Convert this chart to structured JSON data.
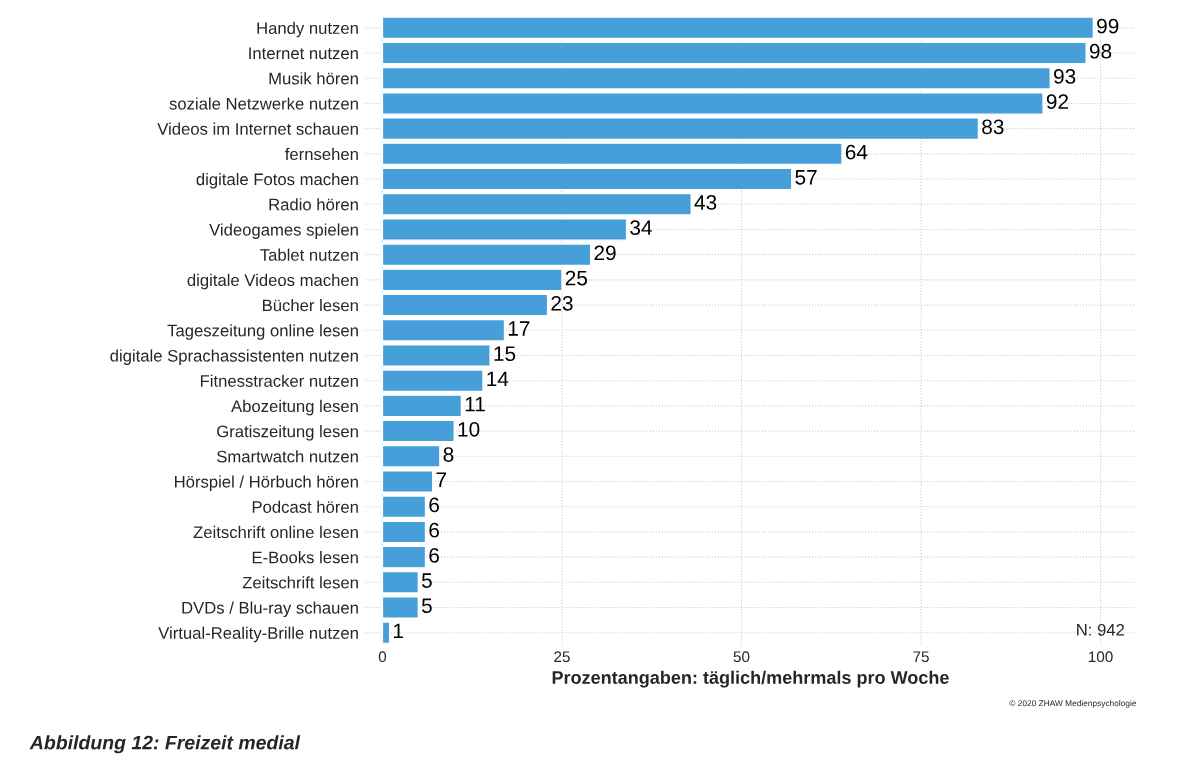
{
  "chart_data": {
    "type": "bar",
    "orientation": "horizontal",
    "xlabel": "Prozentangaben: täglich/mehrmals pro Woche",
    "categories": [
      "Handy nutzen",
      "Internet nutzen",
      "Musik hören",
      "soziale Netzwerke nutzen",
      "Videos im Internet schauen",
      "fernsehen",
      "digitale Fotos machen",
      "Radio hören",
      "Videogames spielen",
      "Tablet nutzen",
      "digitale Videos machen",
      "Bücher lesen",
      "Tageszeitung online lesen",
      "digitale Sprachassistenten nutzen",
      "Fitnesstracker nutzen",
      "Abozeitung lesen",
      "Gratiszeitung lesen",
      "Smartwatch nutzen",
      "Hörspiel / Hörbuch hören",
      "Podcast hören",
      "Zeitschrift online lesen",
      "E-Books lesen",
      "Zeitschrift lesen",
      "DVDs / Blu-ray schauen",
      "Virtual-Reality-Brille nutzen"
    ],
    "values": [
      99,
      98,
      93,
      92,
      83,
      64,
      57,
      43,
      34,
      29,
      25,
      23,
      17,
      15,
      14,
      11,
      10,
      8,
      7,
      6,
      6,
      6,
      5,
      5,
      1
    ],
    "color": "#479fd9",
    "data_labels": true,
    "xlim": [
      -2.5,
      105
    ],
    "xticks": [
      0,
      25,
      50,
      75,
      100
    ],
    "grid": true,
    "annotations": [
      "N: 942",
      "© 2020 ZHAW Medienpsychologie",
      "Abbildung 12: Freizeit medial"
    ]
  }
}
